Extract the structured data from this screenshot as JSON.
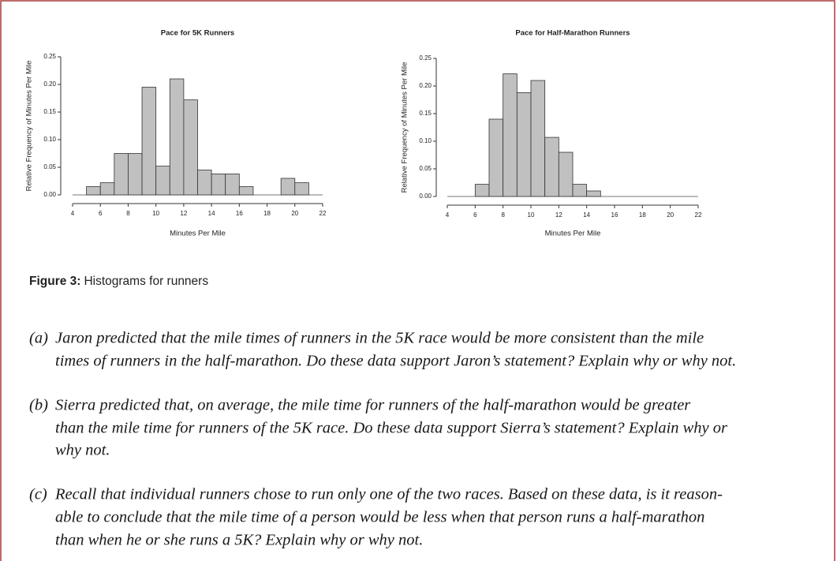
{
  "chart_data": [
    {
      "type": "histogram",
      "title": "Pace for 5K Runners",
      "xlabel": "Minutes Per Mile",
      "ylabel": "Relative Frequency of Minutes Per Mile",
      "bins": [
        5,
        6,
        7,
        8,
        9,
        10,
        11,
        12,
        13,
        14,
        15,
        16,
        17,
        18,
        19,
        20,
        21
      ],
      "values": [
        0.015,
        0.022,
        0.075,
        0.075,
        0.195,
        0.052,
        0.21,
        0.172,
        0.045,
        0.038,
        0.038,
        0.015,
        0,
        0,
        0.03,
        0.022
      ],
      "color": "#c0c0c0",
      "xlim": [
        4,
        22
      ],
      "xticks": [
        4,
        6,
        8,
        10,
        12,
        14,
        16,
        18,
        20,
        22
      ],
      "ylim": [
        0,
        0.25
      ],
      "yticks": [
        {
          "value": 0,
          "label": "0.00"
        },
        0.05,
        {
          "value": 0.1,
          "label": "0.10"
        },
        0.15,
        {
          "value": 0.2,
          "label": "0.20"
        },
        0.25
      ]
    },
    {
      "type": "histogram",
      "title": "Pace for Half-Marathon Runners",
      "xlabel": "Minutes Per Mile",
      "ylabel": "Relative Frequency of Minutes Per Mile",
      "bins": [
        6,
        7,
        8,
        9,
        10,
        11,
        12,
        13,
        14,
        15
      ],
      "values": [
        0.022,
        0.14,
        0.222,
        0.188,
        0.21,
        0.107,
        0.08,
        0.022,
        0.01
      ],
      "color": "#c0c0c0",
      "xlim": [
        4,
        22
      ],
      "xticks": [
        4,
        6,
        8,
        10,
        12,
        14,
        16,
        18,
        20,
        22
      ],
      "ylim": [
        0,
        0.25
      ],
      "yticks": [
        {
          "value": 0,
          "label": "0.00"
        },
        0.05,
        {
          "value": 0.1,
          "label": "0.10"
        },
        0.15,
        {
          "value": 0.2,
          "label": "0.20"
        },
        0.25
      ]
    }
  ],
  "caption": {
    "label": "Figure 3:",
    "text": "Histograms for runners"
  },
  "questions": [
    {
      "label": "(a)",
      "lines": [
        "Jaron predicted that the mile times of runners in the 5K race would be more consistent than the mile",
        "times of runners in the half-marathon. Do these data support Jaron’s statement? Explain why or why not."
      ]
    },
    {
      "label": "(b)",
      "lines": [
        "Sierra predicted that, on average, the mile time for runners of the half-marathon would be greater",
        "than the mile time for runners of the 5K race. Do these data support Sierra’s statement? Explain why or",
        "why not."
      ]
    },
    {
      "label": "(c)",
      "lines": [
        "Recall that individual runners chose to run only one of the two races. Based on these data, is it reason-",
        "able to conclude that the mile time of a person would be less when that person runs a half-marathon",
        "than when he or she runs a 5K? Explain why or why not."
      ]
    }
  ]
}
